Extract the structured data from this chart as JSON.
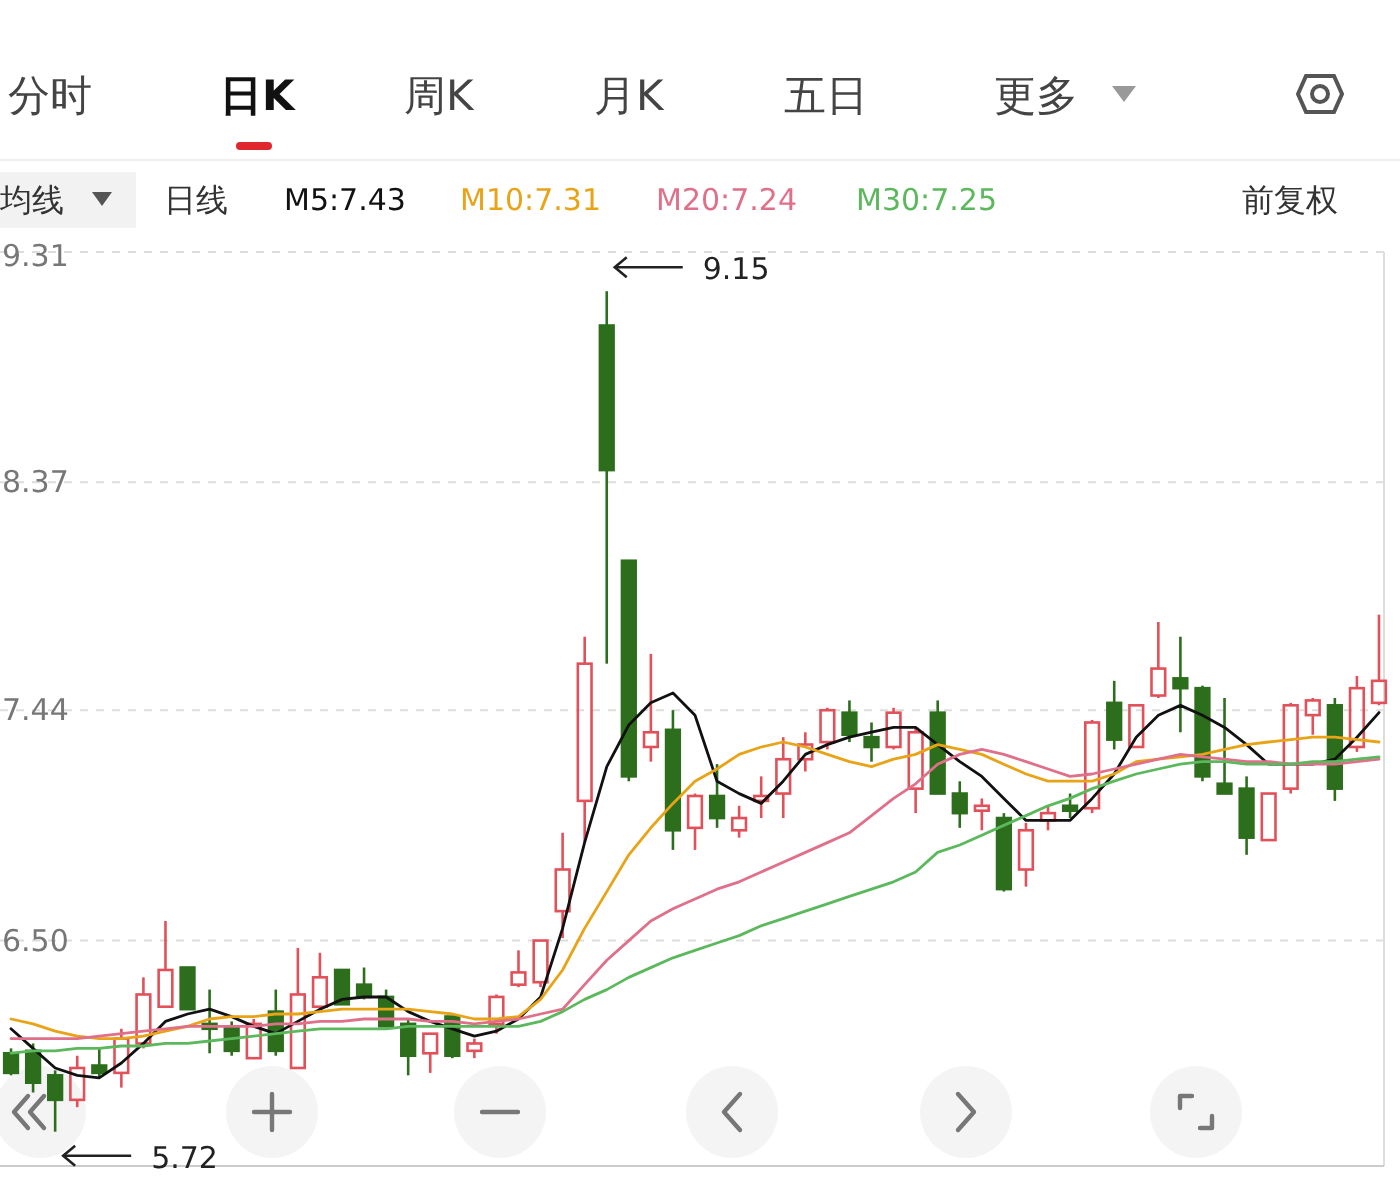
{
  "chart_data": {
    "type": "candlestick",
    "categories": [
      null,
      null,
      null,
      null,
      null,
      null,
      null,
      null,
      null,
      null,
      null,
      null,
      null,
      null,
      null,
      null,
      null,
      null,
      null,
      null,
      null,
      null,
      null,
      null,
      null,
      null,
      null,
      null,
      null,
      null,
      null,
      null,
      null,
      null,
      null,
      null,
      null,
      null,
      null,
      null,
      null,
      null,
      null,
      null,
      null,
      null,
      null,
      null,
      null,
      null,
      null,
      null,
      null,
      null,
      null,
      null,
      null,
      null,
      null,
      null,
      null,
      null,
      null
    ],
    "ohlc": [
      [
        6.04,
        6.06,
        5.95,
        5.96
      ],
      [
        6.05,
        6.08,
        5.88,
        5.92
      ],
      [
        5.95,
        5.97,
        5.72,
        5.85
      ],
      [
        5.85,
        6.03,
        5.82,
        5.98
      ],
      [
        5.99,
        6.06,
        5.94,
        5.96
      ],
      [
        5.96,
        6.14,
        5.9,
        6.1
      ],
      [
        6.08,
        6.35,
        6.06,
        6.28
      ],
      [
        6.23,
        6.58,
        6.23,
        6.38
      ],
      [
        6.39,
        6.39,
        6.22,
        6.22
      ],
      [
        6.16,
        6.3,
        6.04,
        6.14
      ],
      [
        6.15,
        6.17,
        6.03,
        6.05
      ],
      [
        6.02,
        6.18,
        6.02,
        6.16
      ],
      [
        6.21,
        6.3,
        6.03,
        6.05
      ],
      [
        5.98,
        6.47,
        5.98,
        6.28
      ],
      [
        6.23,
        6.45,
        6.23,
        6.35
      ],
      [
        6.38,
        6.38,
        6.24,
        6.24
      ],
      [
        6.32,
        6.39,
        6.26,
        6.27
      ],
      [
        6.27,
        6.3,
        6.15,
        6.15
      ],
      [
        6.16,
        6.18,
        5.95,
        6.03
      ],
      [
        6.04,
        6.12,
        5.96,
        6.12
      ],
      [
        6.19,
        6.19,
        6.02,
        6.03
      ],
      [
        6.05,
        6.1,
        6.02,
        6.08
      ],
      [
        6.16,
        6.28,
        6.12,
        6.27
      ],
      [
        6.32,
        6.46,
        6.31,
        6.37
      ],
      [
        6.33,
        6.5,
        6.31,
        6.5
      ],
      [
        6.62,
        6.94,
        6.51,
        6.79
      ],
      [
        7.07,
        7.74,
        6.9,
        7.63
      ],
      [
        9.01,
        9.15,
        7.63,
        8.42
      ],
      [
        8.05,
        8.05,
        7.15,
        7.17
      ],
      [
        7.29,
        7.67,
        7.23,
        7.35
      ],
      [
        7.36,
        7.44,
        6.87,
        6.95
      ],
      [
        6.96,
        7.1,
        6.87,
        7.09
      ],
      [
        7.09,
        7.22,
        6.96,
        7.0
      ],
      [
        6.95,
        7.05,
        6.92,
        7.0
      ],
      [
        7.07,
        7.17,
        7.0,
        7.09
      ],
      [
        7.1,
        7.33,
        7.0,
        7.24
      ],
      [
        7.24,
        7.35,
        7.19,
        7.3
      ],
      [
        7.31,
        7.45,
        7.28,
        7.44
      ],
      [
        7.43,
        7.48,
        7.31,
        7.34
      ],
      [
        7.33,
        7.39,
        7.23,
        7.29
      ],
      [
        7.29,
        7.45,
        7.28,
        7.43
      ],
      [
        7.12,
        7.37,
        7.02,
        7.35
      ],
      [
        7.43,
        7.48,
        7.1,
        7.1
      ],
      [
        7.1,
        7.15,
        6.96,
        7.02
      ],
      [
        7.03,
        7.08,
        6.95,
        7.05
      ],
      [
        7.0,
        7.02,
        6.7,
        6.71
      ],
      [
        6.79,
        6.98,
        6.72,
        6.95
      ],
      [
        6.99,
        7.05,
        6.95,
        7.02
      ],
      [
        7.05,
        7.1,
        7.0,
        7.03
      ],
      [
        7.04,
        7.4,
        7.02,
        7.39
      ],
      [
        7.47,
        7.56,
        7.28,
        7.32
      ],
      [
        7.29,
        7.46,
        7.29,
        7.46
      ],
      [
        7.5,
        7.8,
        7.49,
        7.61
      ],
      [
        7.57,
        7.74,
        7.35,
        7.53
      ],
      [
        7.53,
        7.54,
        7.15,
        7.17
      ],
      [
        7.14,
        7.49,
        7.1,
        7.1
      ],
      [
        7.12,
        7.17,
        6.85,
        6.92
      ],
      [
        6.91,
        7.1,
        6.91,
        7.1
      ],
      [
        7.12,
        7.47,
        7.1,
        7.46
      ],
      [
        7.42,
        7.49,
        7.34,
        7.48
      ],
      [
        7.46,
        7.49,
        7.07,
        7.12
      ],
      [
        7.29,
        7.58,
        7.27,
        7.53
      ],
      [
        7.47,
        7.83,
        7.46,
        7.56
      ]
    ],
    "series": [
      {
        "type": "line",
        "name": "M5:7.43",
        "color": "#111111",
        "values": [
          6.14,
          6.06,
          5.98,
          5.95,
          5.94,
          6.0,
          6.08,
          6.17,
          6.2,
          6.22,
          6.19,
          6.15,
          6.12,
          6.17,
          6.22,
          6.26,
          6.27,
          6.27,
          6.21,
          6.17,
          6.14,
          6.11,
          6.13,
          6.18,
          6.27,
          6.55,
          6.9,
          7.21,
          7.38,
          7.47,
          7.51,
          7.42,
          7.15,
          7.1,
          7.06,
          7.15,
          7.26,
          7.3,
          7.33,
          7.35,
          7.37,
          7.37,
          7.3,
          7.23,
          7.17,
          7.08,
          6.99,
          6.99,
          6.99,
          7.08,
          7.18,
          7.33,
          7.42,
          7.46,
          7.42,
          7.37,
          7.3,
          7.22,
          7.22,
          7.22,
          7.24,
          7.33,
          7.43
        ]
      },
      {
        "type": "line",
        "name": "M10:7.31",
        "color": "#e8a317",
        "values": [
          6.18,
          6.16,
          6.13,
          6.11,
          6.1,
          6.1,
          6.11,
          6.13,
          6.15,
          6.18,
          6.19,
          6.19,
          6.2,
          6.2,
          6.21,
          6.22,
          6.22,
          6.22,
          6.22,
          6.21,
          6.2,
          6.18,
          6.18,
          6.19,
          6.26,
          6.38,
          6.55,
          6.7,
          6.85,
          6.96,
          7.06,
          7.15,
          7.2,
          7.26,
          7.29,
          7.31,
          7.29,
          7.26,
          7.23,
          7.21,
          7.24,
          7.26,
          7.3,
          7.28,
          7.26,
          7.22,
          7.18,
          7.15,
          7.15,
          7.15,
          7.18,
          7.23,
          7.24,
          7.25,
          7.26,
          7.28,
          7.3,
          7.31,
          7.32,
          7.33,
          7.33,
          7.32,
          7.31
        ]
      },
      {
        "type": "line",
        "name": "M20:7.24",
        "color": "#e0708a",
        "values": [
          6.1,
          6.1,
          6.1,
          6.1,
          6.11,
          6.12,
          6.13,
          6.14,
          6.15,
          6.15,
          6.15,
          6.15,
          6.16,
          6.16,
          6.17,
          6.17,
          6.18,
          6.18,
          6.18,
          6.17,
          6.17,
          6.16,
          6.17,
          6.18,
          6.2,
          6.22,
          6.32,
          6.42,
          6.5,
          6.58,
          6.63,
          6.67,
          6.71,
          6.74,
          6.78,
          6.82,
          6.86,
          6.9,
          6.94,
          7.01,
          7.08,
          7.14,
          7.22,
          7.26,
          7.28,
          7.26,
          7.23,
          7.2,
          7.17,
          7.18,
          7.2,
          7.22,
          7.24,
          7.26,
          7.25,
          7.24,
          7.23,
          7.23,
          7.22,
          7.22,
          7.22,
          7.23,
          7.24
        ]
      },
      {
        "type": "line",
        "name": "M30:7.25",
        "color": "#5cb85c",
        "values": [
          6.04,
          6.05,
          6.05,
          6.06,
          6.06,
          6.07,
          6.07,
          6.08,
          6.08,
          6.09,
          6.1,
          6.11,
          6.12,
          6.13,
          6.14,
          6.14,
          6.14,
          6.14,
          6.15,
          6.15,
          6.15,
          6.15,
          6.15,
          6.15,
          6.17,
          6.21,
          6.26,
          6.3,
          6.35,
          6.39,
          6.43,
          6.46,
          6.49,
          6.52,
          6.56,
          6.59,
          6.62,
          6.65,
          6.68,
          6.71,
          6.74,
          6.78,
          6.86,
          6.89,
          6.93,
          6.97,
          7.01,
          7.05,
          7.08,
          7.12,
          7.15,
          7.18,
          7.2,
          7.22,
          7.23,
          7.23,
          7.22,
          7.22,
          7.22,
          7.23,
          7.23,
          7.24,
          7.25
        ]
      }
    ],
    "ylim": [
      5.58,
      9.31
    ],
    "yticks": [
      {
        "value": 6.5,
        "label": "6.50"
      },
      7.44,
      8.37,
      9.31
    ],
    "grid": "y",
    "legend": "top",
    "tick_labels": "y",
    "annotations": [
      "分时",
      "日K",
      "周K",
      "月K",
      "五日",
      "更多",
      "均线",
      "日线",
      "前复权",
      "9.15",
      "5.72"
    ]
  }
}
